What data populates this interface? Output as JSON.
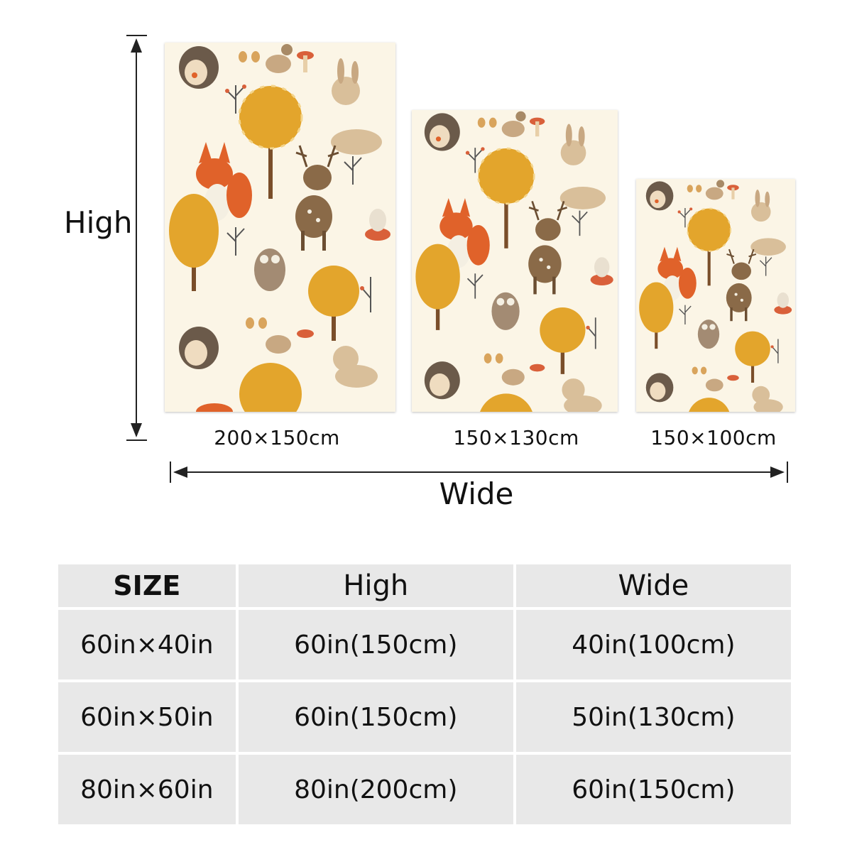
{
  "dimension_labels": {
    "high": "High",
    "wide": "Wide"
  },
  "products": [
    {
      "caption": "200×150cm"
    },
    {
      "caption": "150×130cm"
    },
    {
      "caption": "150×100cm"
    }
  ],
  "size_table": {
    "headers": [
      "SIZE",
      "High",
      "Wide"
    ],
    "rows": [
      {
        "size": "60in×40in",
        "high": "60in(150cm)",
        "wide": "40in(100cm)"
      },
      {
        "size": "60in×50in",
        "high": "60in(150cm)",
        "wide": "50in(130cm)"
      },
      {
        "size": "80in×60in",
        "high": "80in(200cm)",
        "wide": "60in(150cm)"
      }
    ]
  },
  "colors": {
    "background": "#ffffff",
    "table_cell": "#e8e8e8",
    "blanket_base": "#fbf5e6",
    "tree_gold": "#e3a52c",
    "fox_orange": "#e0622a",
    "deer_brown": "#8a6a48",
    "arrow": "#222222"
  }
}
